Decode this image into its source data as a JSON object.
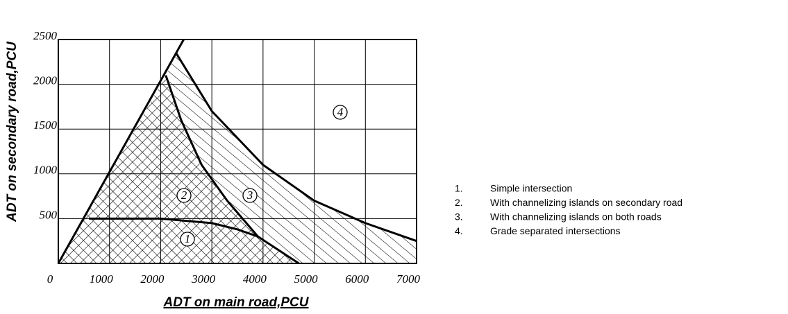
{
  "chart_data": {
    "type": "region",
    "xlabel": "ADT on main road,PCU",
    "ylabel": "ADT on secondary road,PCU",
    "xlim": [
      0,
      7000
    ],
    "ylim": [
      0,
      2500
    ],
    "xticks": [
      0,
      1000,
      2000,
      3000,
      4000,
      5000,
      6000,
      7000
    ],
    "yticks": [
      500,
      1000,
      1500,
      2000,
      2500
    ],
    "grid": true,
    "color": "#000000",
    "curves": [
      {
        "x": [
          0,
          2450
        ],
        "values": [
          0,
          2500
        ]
      },
      {
        "x": [
          600,
          2000,
          3000,
          3500,
          3900
        ],
        "values": [
          500,
          500,
          450,
          380,
          300
        ]
      },
      {
        "x": [
          2100,
          2400,
          2800,
          3300,
          3900,
          4700
        ],
        "values": [
          2100,
          1600,
          1100,
          700,
          300,
          0
        ]
      },
      {
        "x": [
          2300,
          3000,
          4000,
          5000,
          6000,
          7000
        ],
        "values": [
          2350,
          1700,
          1100,
          700,
          450,
          250
        ]
      }
    ],
    "region_labels": [
      "1",
      "2",
      "3",
      "4"
    ],
    "legend": [
      {
        "number": "1.",
        "text": "Simple intersection"
      },
      {
        "number": "2.",
        "text": "With channelizing islands on secondary road"
      },
      {
        "number": "3.",
        "text": "With channelizing islands on both roads"
      },
      {
        "number": "4.",
        "text": "Grade separated intersections"
      }
    ]
  }
}
